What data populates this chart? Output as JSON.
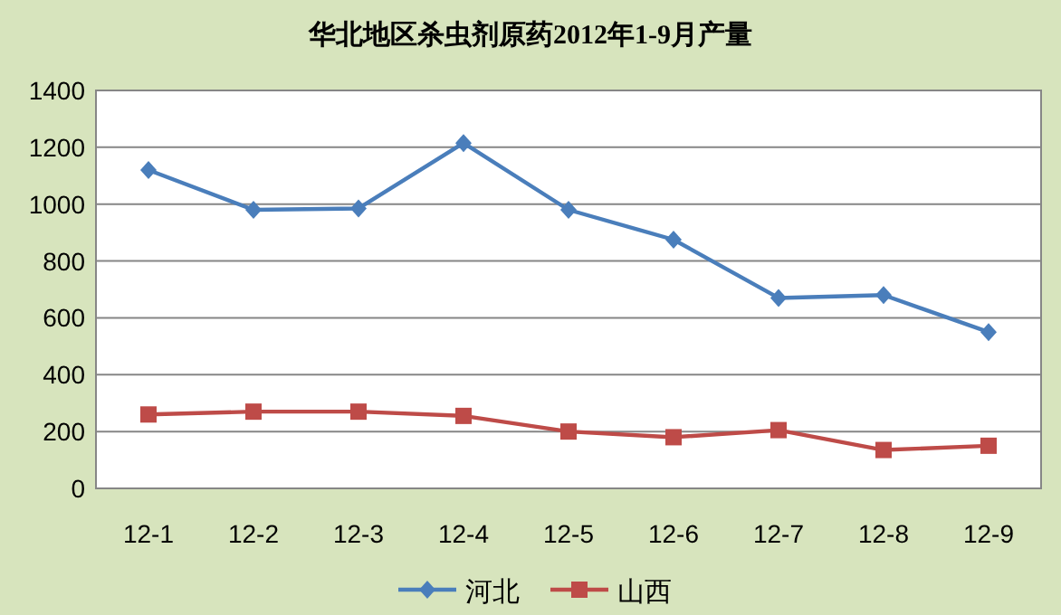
{
  "chart_data": {
    "type": "line",
    "title": "华北地区杀虫剂原药2012年1-9月产量",
    "categories": [
      "12-1",
      "12-2",
      "12-3",
      "12-4",
      "12-5",
      "12-6",
      "12-7",
      "12-8",
      "12-9"
    ],
    "series": [
      {
        "name": "河北",
        "color": "#4a7ebb",
        "marker": "diamond",
        "values": [
          1120,
          980,
          985,
          1215,
          980,
          875,
          670,
          680,
          550
        ]
      },
      {
        "name": "山西",
        "color": "#be4b48",
        "marker": "square",
        "values": [
          260,
          270,
          270,
          255,
          200,
          180,
          205,
          135,
          150
        ]
      }
    ],
    "ylim": [
      0,
      1400
    ],
    "yticks": [
      0,
      200,
      400,
      600,
      800,
      1000,
      1200,
      1400
    ],
    "grid": "y",
    "legend": "bottom",
    "line_style": "solid"
  }
}
